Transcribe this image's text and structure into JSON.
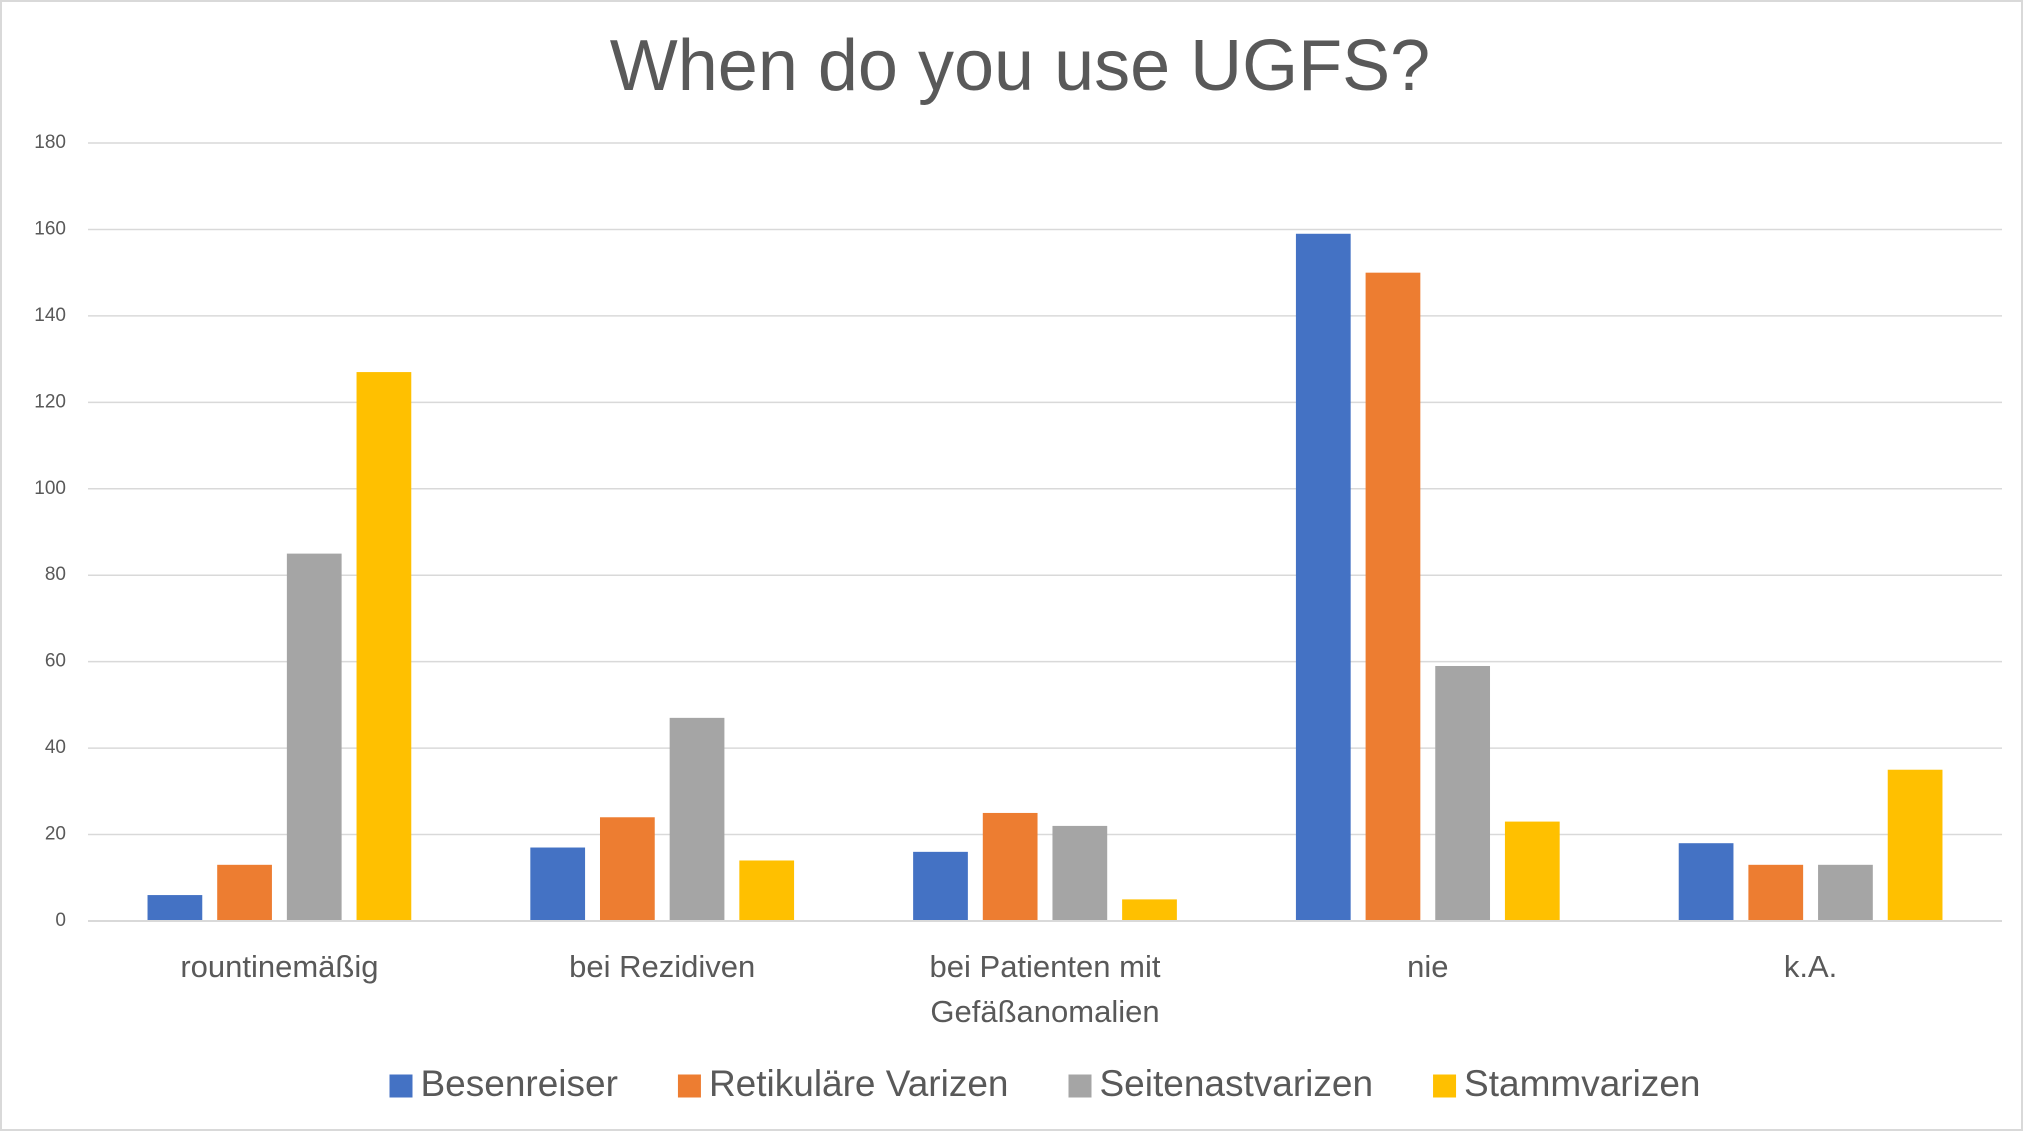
{
  "chart_data": {
    "type": "bar",
    "title": "When do you use UGFS?",
    "categories": [
      "rountinemäßig",
      "bei Rezidiven",
      "bei Patienten mit\nGefäßanomalien",
      "nie",
      "k.A."
    ],
    "series": [
      {
        "name": "Besenreiser",
        "color": "#4472c4",
        "values": [
          6,
          17,
          16,
          159,
          18
        ]
      },
      {
        "name": "Retikuläre Varizen",
        "color": "#ed7d31",
        "values": [
          13,
          24,
          25,
          150,
          13
        ]
      },
      {
        "name": "Seitenastvarizen",
        "color": "#a5a5a5",
        "values": [
          85,
          47,
          22,
          59,
          13
        ]
      },
      {
        "name": "Stammvarizen",
        "color": "#ffc000",
        "values": [
          127,
          14,
          5,
          23,
          35
        ]
      }
    ],
    "ylim": [
      0,
      180
    ],
    "yticks": [
      0,
      20,
      40,
      60,
      80,
      100,
      120,
      140,
      160,
      180
    ],
    "grid": true,
    "legend": "bottom"
  }
}
